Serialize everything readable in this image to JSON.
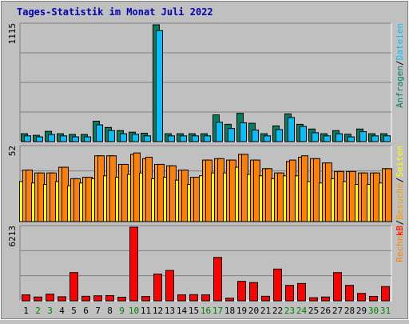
{
  "title": "Tages-Statistik im Monat Juli 2022",
  "colors": {
    "background": "#c0c0c0",
    "plot": "#c0c0c0",
    "title": "#0000b0",
    "anfragen": "#008060",
    "dateien": "#00c0ff",
    "seiten": "#ffff00",
    "besuche": "#ff9900",
    "rechner": "#ff8000",
    "kb": "#ff0000",
    "weekday_label": "#000000",
    "weekend_label": "#008000",
    "grid": "#808080"
  },
  "chart_data": [
    {
      "type": "bar",
      "name": "hits-files-panel",
      "ymax_label": "1115",
      "ylim": [
        0,
        1115
      ],
      "right_labels": [
        "Anfragen",
        "Dateien"
      ],
      "series": [
        {
          "name": "Anfragen",
          "color_key": "anfragen",
          "values": [
            75,
            60,
            98,
            75,
            68,
            68,
            195,
            135,
            105,
            90,
            80,
            1115,
            75,
            75,
            75,
            75,
            255,
            165,
            270,
            175,
            75,
            150,
            265,
            165,
            120,
            75,
            105,
            70,
            120,
            75,
            75
          ]
        },
        {
          "name": "Dateien",
          "color_key": "dateien",
          "values": [
            55,
            45,
            68,
            55,
            45,
            45,
            160,
            105,
            75,
            70,
            55,
            1060,
            55,
            55,
            55,
            55,
            185,
            125,
            180,
            110,
            55,
            115,
            230,
            145,
            85,
            55,
            75,
            45,
            95,
            55,
            55
          ]
        }
      ]
    },
    {
      "type": "bar",
      "name": "pages-visits-panel",
      "ymax_label": "52",
      "ylim": [
        0,
        52
      ],
      "right_labels": [
        "Rechner",
        "Besuche",
        "Seiten"
      ],
      "series": [
        {
          "name": "Seiten",
          "color_key": "seiten",
          "values": [
            28,
            27,
            26,
            28,
            25,
            27,
            30,
            32,
            31,
            33,
            34,
            30,
            31,
            29,
            26,
            32,
            34,
            34,
            38,
            33,
            32,
            30,
            32,
            32,
            28,
            27,
            30,
            28,
            26,
            26,
            27
          ]
        },
        {
          "name": "Besuche",
          "color_key": "besuche",
          "values": [
            36,
            34,
            34,
            38,
            30,
            31,
            46,
            46,
            40,
            47,
            44,
            40,
            39,
            36,
            31,
            43,
            44,
            43,
            47,
            43,
            37,
            34,
            42,
            45,
            44,
            41,
            35,
            35,
            34,
            34,
            37
          ]
        },
        {
          "name": "Rechner",
          "color_key": "rechner",
          "values": [
            36,
            34,
            34,
            38,
            30,
            31,
            46,
            46,
            40,
            48,
            45,
            40,
            39,
            36,
            31,
            43,
            44,
            43,
            47,
            43,
            37,
            34,
            43,
            46,
            44,
            41,
            35,
            35,
            34,
            34,
            37
          ]
        }
      ]
    },
    {
      "type": "bar",
      "name": "kbytes-panel",
      "ymax_label": "6213",
      "ylim": [
        0,
        6213
      ],
      "right_labels": [
        "kB"
      ],
      "series": [
        {
          "name": "kB",
          "color_key": "kb",
          "values": [
            500,
            320,
            560,
            340,
            2380,
            380,
            420,
            440,
            300,
            6213,
            360,
            2260,
            2560,
            500,
            520,
            500,
            3660,
            220,
            1640,
            1540,
            380,
            2680,
            1300,
            1460,
            260,
            320,
            2380,
            1300,
            620,
            370,
            1200
          ]
        }
      ]
    }
  ],
  "x_axis": {
    "days": [
      "1",
      "2",
      "3",
      "4",
      "5",
      "6",
      "7",
      "8",
      "9",
      "10",
      "11",
      "12",
      "13",
      "14",
      "15",
      "16",
      "17",
      "18",
      "19",
      "20",
      "21",
      "22",
      "23",
      "24",
      "25",
      "26",
      "27",
      "28",
      "29",
      "30",
      "31"
    ],
    "weekend": [
      false,
      true,
      true,
      false,
      false,
      false,
      false,
      false,
      true,
      true,
      false,
      false,
      false,
      false,
      false,
      true,
      true,
      false,
      false,
      false,
      false,
      false,
      true,
      true,
      false,
      false,
      false,
      false,
      false,
      true,
      true
    ]
  }
}
